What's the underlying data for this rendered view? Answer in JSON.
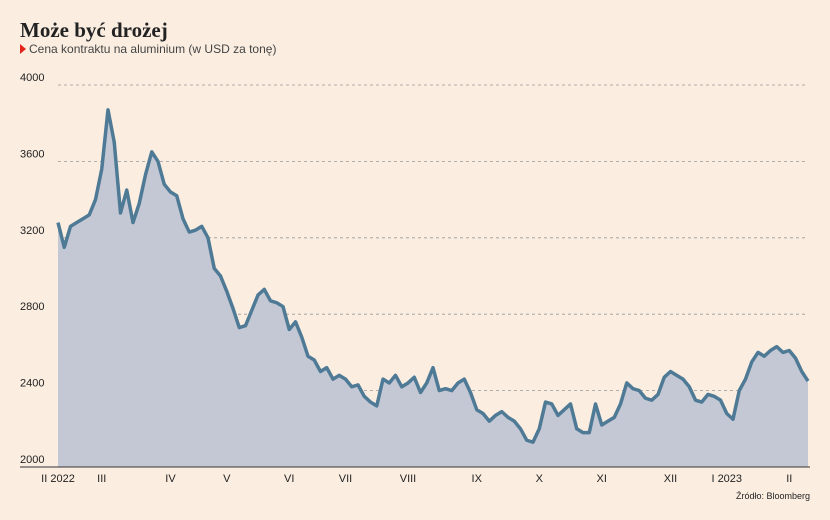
{
  "chart_data": {
    "type": "area",
    "title": "Może być drożej",
    "subtitle": "Cena kontraktu na aluminium (w USD za tonę)",
    "source": "Źródło: Bloomberg",
    "color": "#4f7a96",
    "fill": "#c4c8d5",
    "ylim": [
      2000,
      4000
    ],
    "yticks": [
      2000,
      2400,
      2800,
      3200,
      3600,
      4000
    ],
    "grid": true,
    "categories": [
      "II 2022",
      null,
      null,
      null,
      null,
      null,
      null,
      "III",
      null,
      null,
      null,
      null,
      null,
      null,
      null,
      null,
      null,
      null,
      "IV",
      null,
      null,
      null,
      null,
      null,
      null,
      null,
      null,
      "V",
      null,
      null,
      null,
      null,
      null,
      null,
      null,
      null,
      null,
      "VI",
      null,
      null,
      null,
      null,
      null,
      null,
      null,
      null,
      "VII",
      null,
      null,
      null,
      null,
      null,
      null,
      null,
      null,
      null,
      "VIII",
      null,
      null,
      null,
      null,
      null,
      null,
      null,
      null,
      null,
      null,
      "IX",
      null,
      null,
      null,
      null,
      null,
      null,
      null,
      null,
      null,
      "X",
      null,
      null,
      null,
      null,
      null,
      null,
      null,
      null,
      null,
      "XI",
      null,
      null,
      null,
      null,
      null,
      null,
      null,
      null,
      null,
      null,
      "XII",
      null,
      null,
      null,
      null,
      null,
      null,
      null,
      null,
      "I 2023",
      null,
      null,
      null,
      null,
      null,
      null,
      null,
      null,
      null,
      "II",
      null,
      null,
      null
    ],
    "values": [
      3280,
      3150,
      3260,
      3280,
      3300,
      3320,
      3400,
      3560,
      3870,
      3700,
      3330,
      3450,
      3280,
      3380,
      3530,
      3650,
      3600,
      3480,
      3440,
      3420,
      3300,
      3230,
      3240,
      3260,
      3200,
      3040,
      3000,
      2920,
      2830,
      2730,
      2740,
      2820,
      2900,
      2930,
      2870,
      2860,
      2840,
      2720,
      2760,
      2680,
      2580,
      2560,
      2500,
      2520,
      2460,
      2480,
      2460,
      2420,
      2430,
      2370,
      2340,
      2320,
      2460,
      2440,
      2480,
      2420,
      2440,
      2470,
      2390,
      2440,
      2520,
      2400,
      2410,
      2400,
      2440,
      2460,
      2390,
      2300,
      2280,
      2240,
      2270,
      2290,
      2260,
      2240,
      2200,
      2140,
      2130,
      2200,
      2340,
      2330,
      2270,
      2300,
      2330,
      2200,
      2180,
      2180,
      2330,
      2220,
      2240,
      2260,
      2330,
      2440,
      2410,
      2400,
      2360,
      2350,
      2380,
      2470,
      2500,
      2480,
      2460,
      2420,
      2350,
      2340,
      2380,
      2370,
      2350,
      2280,
      2250,
      2400,
      2460,
      2550,
      2600,
      2580,
      2610,
      2630,
      2600,
      2610,
      2570,
      2500,
      2450
    ]
  }
}
